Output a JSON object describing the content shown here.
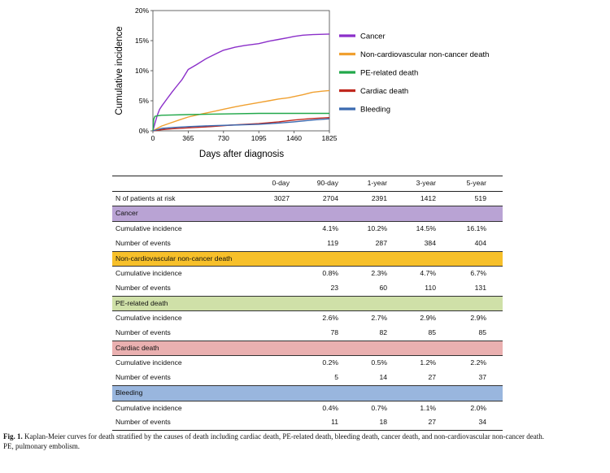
{
  "chart_data": {
    "type": "line",
    "xlabel": "Days after diagnosis",
    "ylabel": "Cumulative incidence",
    "xlim": [
      0,
      1825
    ],
    "ylim": [
      0,
      20
    ],
    "x_ticks": [
      0,
      365,
      730,
      1095,
      1460,
      1825
    ],
    "x_tick_labels": [
      "0",
      "365",
      "730",
      "1095",
      "1460",
      "1825"
    ],
    "y_ticks": [
      0,
      5,
      10,
      15,
      20
    ],
    "y_tick_labels": [
      "0%",
      "5%",
      "10%",
      "15%",
      "20%"
    ],
    "series": [
      {
        "name": "Cancer",
        "color": "#8b2fc9",
        "x": [
          0,
          20,
          45,
          70,
          90,
          150,
          200,
          250,
          300,
          365,
          450,
          550,
          650,
          730,
          850,
          950,
          1095,
          1200,
          1300,
          1400,
          1460,
          1550,
          1650,
          1825
        ],
        "y": [
          0,
          1.2,
          2.6,
          3.6,
          4.1,
          5.4,
          6.5,
          7.5,
          8.5,
          10.2,
          11.0,
          12.0,
          12.8,
          13.4,
          13.9,
          14.2,
          14.5,
          14.9,
          15.2,
          15.5,
          15.7,
          15.9,
          16.0,
          16.1
        ]
      },
      {
        "name": "Non-cardiovascular non-cancer death",
        "color": "#f0a030",
        "x": [
          0,
          45,
          90,
          180,
          270,
          365,
          500,
          650,
          730,
          850,
          950,
          1095,
          1200,
          1300,
          1400,
          1460,
          1550,
          1650,
          1750,
          1825
        ],
        "y": [
          0,
          0.4,
          0.8,
          1.3,
          1.8,
          2.3,
          2.8,
          3.3,
          3.6,
          4.0,
          4.3,
          4.7,
          5.0,
          5.3,
          5.5,
          5.7,
          6.0,
          6.4,
          6.6,
          6.7
        ]
      },
      {
        "name": "PE-related death",
        "color": "#22a84a",
        "x": [
          0,
          8,
          20,
          45,
          90,
          365,
          1095,
          1825
        ],
        "y": [
          0,
          1.9,
          2.4,
          2.5,
          2.6,
          2.7,
          2.9,
          2.9
        ]
      },
      {
        "name": "Cardiac death",
        "color": "#c0281f",
        "x": [
          0,
          90,
          200,
          365,
          600,
          800,
          1095,
          1300,
          1460,
          1650,
          1825
        ],
        "y": [
          0,
          0.2,
          0.35,
          0.5,
          0.7,
          0.95,
          1.2,
          1.5,
          1.8,
          2.05,
          2.2
        ]
      },
      {
        "name": "Bleeding",
        "color": "#3c6ab0",
        "x": [
          0,
          90,
          200,
          365,
          600,
          800,
          1095,
          1300,
          1460,
          1650,
          1825
        ],
        "y": [
          0,
          0.4,
          0.55,
          0.7,
          0.85,
          0.95,
          1.1,
          1.3,
          1.5,
          1.8,
          2.0
        ]
      }
    ],
    "legend": [
      "Cancer",
      "Non-cardiovascular non-cancer death",
      "PE-related death",
      "Cardiac death",
      "Bleeding"
    ]
  },
  "table": {
    "columns": [
      "",
      "0-day",
      "90-day",
      "1-year",
      "3-year",
      "5-year"
    ],
    "at_risk": {
      "label": "N of patients at risk",
      "values": [
        "3027",
        "2704",
        "2391",
        "1412",
        "519"
      ]
    },
    "groups": [
      {
        "name": "Cancer",
        "color": "#b9a3d4",
        "incidence_label": "Cumulative incidence",
        "incidence": [
          "",
          "4.1%",
          "10.2%",
          "14.5%",
          "16.1%"
        ],
        "events_label": "Number of events",
        "events": [
          "",
          "119",
          "287",
          "384",
          "404"
        ]
      },
      {
        "name": "Non-cardiovascular non-cancer death",
        "color": "#f7c02a",
        "incidence_label": "Cumulative incidence",
        "incidence": [
          "",
          "0.8%",
          "2.3%",
          "4.7%",
          "6.7%"
        ],
        "events_label": "Number of events",
        "events": [
          "",
          "23",
          "60",
          "110",
          "131"
        ]
      },
      {
        "name": "PE-related death",
        "color": "#cfe0a8",
        "incidence_label": "Cumulative incidence",
        "incidence": [
          "",
          "2.6%",
          "2.7%",
          "2.9%",
          "2.9%"
        ],
        "events_label": "Number of events",
        "events": [
          "",
          "78",
          "82",
          "85",
          "85"
        ]
      },
      {
        "name": "Cardiac death",
        "color": "#eab0b0",
        "incidence_label": "Cumulative incidence",
        "incidence": [
          "",
          "0.2%",
          "0.5%",
          "1.2%",
          "2.2%"
        ],
        "events_label": "Number of events",
        "events": [
          "",
          "5",
          "14",
          "27",
          "37"
        ]
      },
      {
        "name": "Bleeding",
        "color": "#99b6de",
        "incidence_label": "Cumulative incidence",
        "incidence": [
          "",
          "0.4%",
          "0.7%",
          "1.1%",
          "2.0%"
        ],
        "events_label": "Number of events",
        "events": [
          "",
          "11",
          "18",
          "27",
          "34"
        ]
      }
    ]
  },
  "caption": {
    "label": "Fig. 1.",
    "text": " Kaplan-Meier curves for death stratified by the causes of death including cardiac death, PE-related death, bleeding death, cancer death, and non-cardiovascular non-cancer death.",
    "abbrev": "PE, pulmonary embolism."
  }
}
